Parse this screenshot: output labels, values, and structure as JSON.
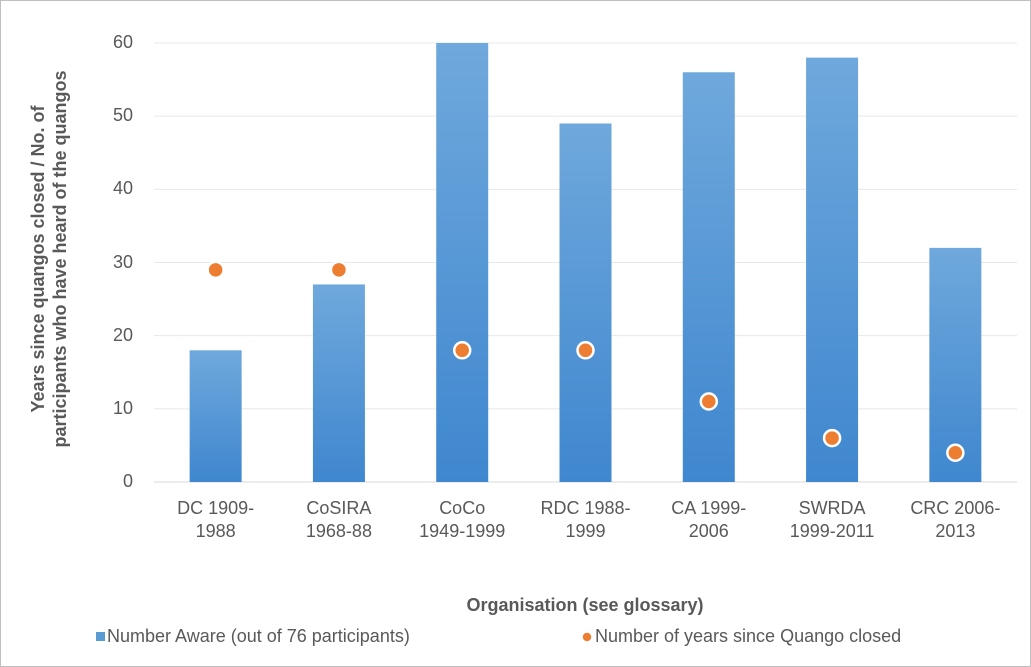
{
  "chart_data": {
    "type": "bar",
    "x_label": "Organisation (see glossary)",
    "y_label": "Years since quangos closed / No. of\nparticipants who have heard of the  quangos",
    "categories": [
      "DC 1909-\n1988",
      "CoSIRA\n1968-88",
      "CoCo\n1949-1999",
      "RDC 1988-\n1999",
      "CA 1999-\n2006",
      "SWRDA\n1999-2011",
      "CRC 2006-\n2013"
    ],
    "series": [
      {
        "name": "Number Aware (out of 76 participants)",
        "type": "bar",
        "color": "#5b9bd5",
        "values": [
          18,
          27,
          60,
          49,
          56,
          58,
          32
        ]
      },
      {
        "name": "Number of years since Quango closed",
        "type": "dot",
        "color": "#ed7d31",
        "values": [
          29,
          29,
          18,
          18,
          11,
          6,
          4
        ]
      }
    ],
    "ylim": [
      0,
      60
    ],
    "yticks": [
      0,
      10,
      20,
      30,
      40,
      50,
      60
    ],
    "grid": true,
    "legend": "bottom"
  }
}
